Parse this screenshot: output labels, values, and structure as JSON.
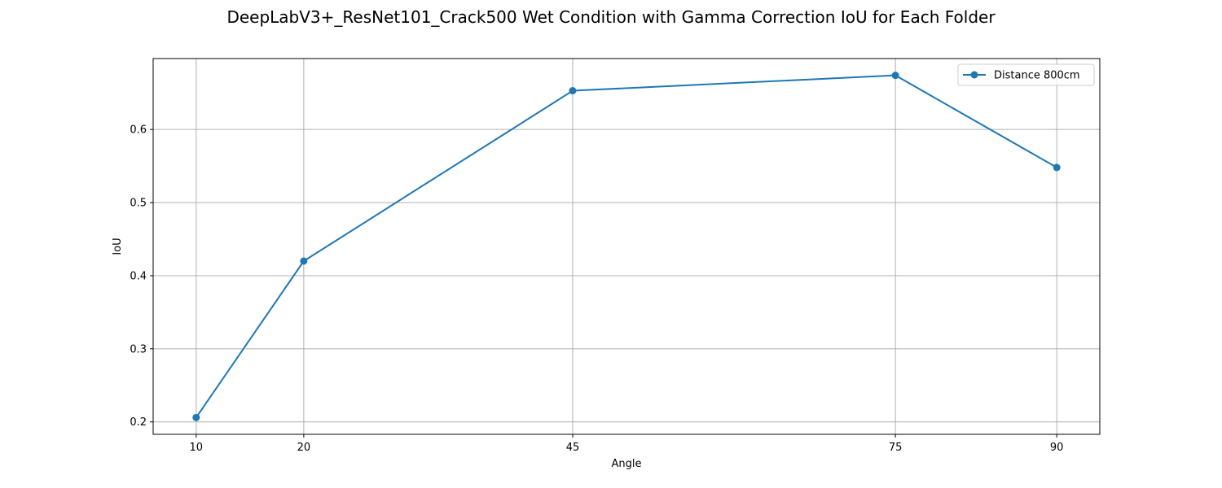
{
  "chart_data": {
    "type": "line",
    "title": "DeepLabV3+_ResNet101_Crack500 Wet Condition with Gamma Correction IoU for Each Folder",
    "xlabel": "Angle",
    "ylabel": "IoU",
    "x": [
      10,
      20,
      45,
      75,
      90
    ],
    "x_ticks": [
      "10",
      "20",
      "45",
      "75",
      "90"
    ],
    "xlim": [
      6,
      94
    ],
    "ylim": [
      0.183,
      0.697
    ],
    "y_ticks": [
      "0.2",
      "0.3",
      "0.4",
      "0.5",
      "0.6"
    ],
    "grid": true,
    "legend_position": "top-right",
    "series": [
      {
        "name": "Distance 800cm",
        "color": "#1f77b4",
        "marker": "circle",
        "values": [
          0.206,
          0.42,
          0.653,
          0.674,
          0.548
        ]
      }
    ]
  }
}
